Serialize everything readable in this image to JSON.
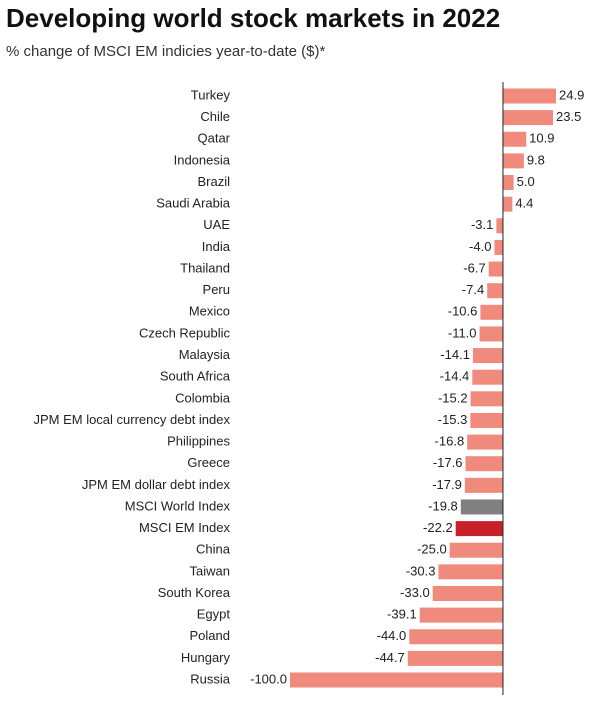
{
  "chart_data": {
    "type": "hbar",
    "title": "Developing world stock markets in 2022",
    "subtitle": "% change of MSCI EM indicies year-to-date ($)*",
    "categories": [
      "Turkey",
      "Chile",
      "Qatar",
      "Indonesia",
      "Brazil",
      "Saudi Arabia",
      "UAE",
      "India",
      "Thailand",
      "Peru",
      "Mexico",
      "Czech Republic",
      "Malaysia",
      "South Africa",
      "Colombia",
      "JPM EM local currency debt index",
      "Philippines",
      "Greece",
      "JPM EM dollar debt index",
      "MSCI World Index",
      "MSCI EM Index",
      "China",
      "Taiwan",
      "South Korea",
      "Egypt",
      "Poland",
      "Hungary",
      "Russia"
    ],
    "values": [
      24.9,
      23.5,
      10.9,
      9.8,
      5.0,
      4.4,
      -3.1,
      -4.0,
      -6.7,
      -7.4,
      -10.6,
      -11.0,
      -14.1,
      -14.4,
      -15.2,
      -15.3,
      -16.8,
      -17.6,
      -17.9,
      -19.8,
      -22.2,
      -25.0,
      -30.3,
      -33.0,
      -39.1,
      -44.0,
      -44.7,
      -100.0
    ],
    "value_labels": [
      "24.9",
      "23.5",
      "10.9",
      "9.8",
      "5.0",
      "4.4",
      "-3.1",
      "-4.0",
      "-6.7",
      "-7.4",
      "-10.6",
      "-11.0",
      "-14.1",
      "-14.4",
      "-15.2",
      "-15.3",
      "-16.8",
      "-17.6",
      "-17.9",
      "-19.8",
      "-22.2",
      "-25.0",
      "-30.3",
      "-33.0",
      "-39.1",
      "-44.0",
      "-44.7",
      "-100.0"
    ],
    "colors": [
      "#f08a7c",
      "#f08a7c",
      "#f08a7c",
      "#f08a7c",
      "#f08a7c",
      "#f08a7c",
      "#f08a7c",
      "#f08a7c",
      "#f08a7c",
      "#f08a7c",
      "#f08a7c",
      "#f08a7c",
      "#f08a7c",
      "#f08a7c",
      "#f08a7c",
      "#f08a7c",
      "#f08a7c",
      "#f08a7c",
      "#f08a7c",
      "#808080",
      "#c8202a",
      "#f08a7c",
      "#f08a7c",
      "#f08a7c",
      "#f08a7c",
      "#f08a7c",
      "#f08a7c",
      "#f08a7c"
    ]
  }
}
